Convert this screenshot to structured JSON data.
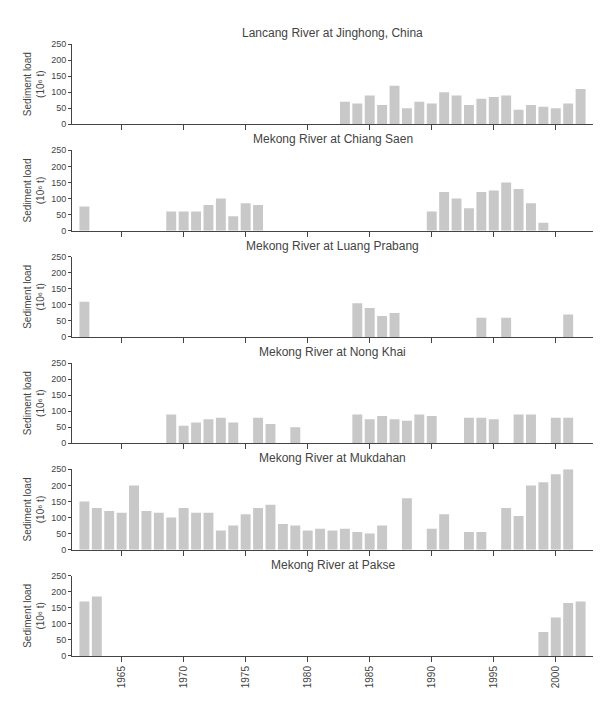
{
  "chart_data": [
    {
      "type": "bar",
      "title": "Lancang River at Jinghong, China",
      "x": [
        1983,
        1984,
        1985,
        1986,
        1987,
        1988,
        1989,
        1990,
        1991,
        1992,
        1993,
        1994,
        1995,
        1996,
        1997,
        1998,
        1999,
        2000,
        2001,
        2002
      ],
      "values": [
        70,
        65,
        90,
        60,
        120,
        50,
        70,
        65,
        100,
        90,
        60,
        80,
        85,
        90,
        45,
        60,
        55,
        50,
        65,
        110
      ],
      "color": "#c8c8c8",
      "y_label": "Sediment load\n(10⁶ t)",
      "xlim": [
        1961,
        2003
      ],
      "xticks": [
        1965,
        1970,
        1975,
        1980,
        1985,
        1990,
        1995,
        2000
      ],
      "ylim": [
        0,
        250
      ],
      "yticks": [
        0,
        50,
        100,
        150,
        200,
        250
      ],
      "grid": false,
      "tick_labels": "y"
    },
    {
      "type": "bar",
      "title": "Mekong River at Chiang Saen",
      "x": [
        1962,
        1969,
        1970,
        1971,
        1972,
        1973,
        1974,
        1975,
        1976,
        1990,
        1991,
        1992,
        1993,
        1994,
        1995,
        1996,
        1997,
        1998,
        1999
      ],
      "values": [
        75,
        60,
        60,
        60,
        80,
        100,
        45,
        85,
        80,
        60,
        120,
        100,
        70,
        120,
        125,
        150,
        130,
        85,
        25
      ],
      "color": "#c8c8c8",
      "y_label": "Sediment load\n(10⁶ t)",
      "xlim": [
        1961,
        2003
      ],
      "xticks": [
        1965,
        1970,
        1975,
        1980,
        1985,
        1990,
        1995,
        2000
      ],
      "ylim": [
        0,
        250
      ],
      "yticks": [
        0,
        50,
        100,
        150,
        200,
        250
      ],
      "grid": false,
      "tick_labels": "y"
    },
    {
      "type": "bar",
      "title": "Mekong River at Luang Prabang",
      "x": [
        1962,
        1984,
        1985,
        1986,
        1987,
        1994,
        1996,
        2001
      ],
      "values": [
        110,
        105,
        90,
        65,
        75,
        60,
        60,
        70
      ],
      "color": "#c8c8c8",
      "y_label": "Sediment load\n(10⁶ t)",
      "xlim": [
        1961,
        2003
      ],
      "xticks": [
        1965,
        1970,
        1975,
        1980,
        1985,
        1990,
        1995,
        2000
      ],
      "ylim": [
        0,
        250
      ],
      "yticks": [
        0,
        50,
        100,
        150,
        200,
        250
      ],
      "grid": false,
      "tick_labels": "y"
    },
    {
      "type": "bar",
      "title": "Mekong River at Nong Khai",
      "x": [
        1969,
        1970,
        1971,
        1972,
        1973,
        1974,
        1976,
        1977,
        1979,
        1984,
        1985,
        1986,
        1987,
        1988,
        1989,
        1990,
        1993,
        1994,
        1995,
        1997,
        1998,
        2000,
        2001
      ],
      "values": [
        90,
        55,
        65,
        75,
        80,
        65,
        80,
        60,
        50,
        90,
        75,
        85,
        75,
        70,
        90,
        85,
        80,
        80,
        75,
        90,
        90,
        80,
        80
      ],
      "color": "#c8c8c8",
      "y_label": "Sediment load\n(10⁶ t)",
      "xlim": [
        1961,
        2003
      ],
      "xticks": [
        1965,
        1970,
        1975,
        1980,
        1985,
        1990,
        1995,
        2000
      ],
      "ylim": [
        0,
        250
      ],
      "yticks": [
        0,
        50,
        100,
        150,
        200,
        250
      ],
      "grid": false,
      "tick_labels": "y"
    },
    {
      "type": "bar",
      "title": "Mekong River at Mukdahan",
      "x": [
        1962,
        1963,
        1964,
        1965,
        1966,
        1967,
        1968,
        1969,
        1970,
        1971,
        1972,
        1973,
        1974,
        1975,
        1976,
        1977,
        1978,
        1979,
        1980,
        1981,
        1982,
        1983,
        1984,
        1985,
        1986,
        1988,
        1990,
        1991,
        1993,
        1994,
        1996,
        1997,
        1998,
        1999,
        2000,
        2001
      ],
      "values": [
        150,
        130,
        120,
        115,
        200,
        120,
        115,
        100,
        130,
        115,
        115,
        60,
        75,
        110,
        130,
        140,
        80,
        75,
        60,
        65,
        60,
        65,
        55,
        50,
        75,
        160,
        65,
        110,
        55,
        55,
        130,
        105,
        200,
        210,
        235,
        250
      ],
      "color": "#c8c8c8",
      "y_label": "Sediment load\n(10⁶ t)",
      "xlim": [
        1961,
        2003
      ],
      "xticks": [
        1965,
        1970,
        1975,
        1980,
        1985,
        1990,
        1995,
        2000
      ],
      "ylim": [
        0,
        250
      ],
      "yticks": [
        0,
        50,
        100,
        150,
        200,
        250
      ],
      "grid": false,
      "tick_labels": "y"
    },
    {
      "type": "bar",
      "title": "Mekong River at Pakse",
      "x": [
        1962,
        1963,
        1999,
        2000,
        2001,
        2002
      ],
      "values": [
        170,
        185,
        75,
        120,
        165,
        170
      ],
      "color": "#c8c8c8",
      "y_label": "Sediment load\n(10⁶ t)",
      "xlim": [
        1961,
        2003
      ],
      "xticks": [
        1965,
        1970,
        1975,
        1980,
        1985,
        1990,
        1995,
        2000
      ],
      "ylim": [
        0,
        250
      ],
      "yticks": [
        0,
        50,
        100,
        150,
        200,
        250
      ],
      "grid": false
    }
  ]
}
